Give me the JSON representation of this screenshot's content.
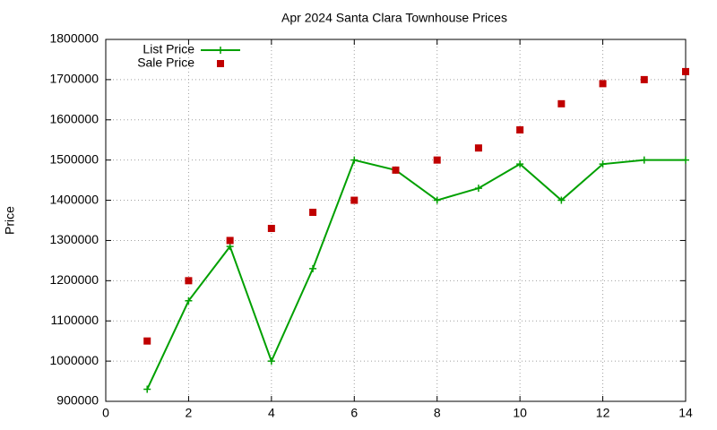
{
  "chart_data": {
    "type": "line",
    "title": "Apr 2024 Santa Clara Townhouse Prices",
    "y_label": "Price",
    "x": [
      1,
      2,
      3,
      4,
      5,
      6,
      7,
      8,
      9,
      10,
      11,
      12,
      13,
      14
    ],
    "series": [
      {
        "name": "List Price",
        "color": "#00a000",
        "style": "linespoints",
        "values": [
          930000,
          1150000,
          1285000,
          1000000,
          1230000,
          1500000,
          1475000,
          1400000,
          1430000,
          1490000,
          1400000,
          1490000,
          1500000,
          1500000
        ]
      },
      {
        "name": "Sale Price",
        "color": "#c00000",
        "style": "points",
        "values": [
          1050000,
          1200000,
          1300000,
          1330000,
          1370000,
          1400000,
          1475000,
          1500000,
          1530000,
          1575000,
          1640000,
          1690000,
          1700000,
          1720000
        ]
      }
    ],
    "xlim": [
      0,
      14
    ],
    "xticks": [
      0,
      2,
      4,
      6,
      8,
      10,
      12,
      14
    ],
    "ylim": [
      900000,
      1800000
    ],
    "yticks": [
      900000,
      1000000,
      1100000,
      1200000,
      1300000,
      1400000,
      1500000,
      1600000,
      1700000,
      1800000
    ],
    "grid": true,
    "legend": "top-left"
  }
}
